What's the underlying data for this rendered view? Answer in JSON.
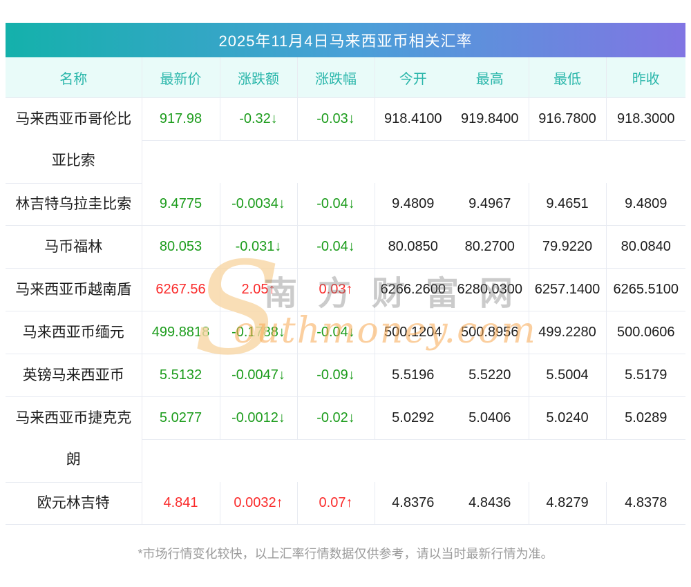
{
  "title": "2025年11月4日马来西亚币相关汇率",
  "columns": [
    "名称",
    "最新价",
    "涨跌额",
    "涨跌幅",
    "今开",
    "最高",
    "最低",
    "昨收"
  ],
  "rows": [
    {
      "name": "马来西亚币哥伦比亚比索",
      "latest": "917.98",
      "change": "-0.32↓",
      "pct": "-0.03↓",
      "open": "918.4100",
      "high": "919.8400",
      "low": "916.7800",
      "prev": "918.3000",
      "trend": "down",
      "tall": true
    },
    {
      "name": "林吉特乌拉圭比索",
      "latest": "9.4775",
      "change": "-0.0034↓",
      "pct": "-0.04↓",
      "open": "9.4809",
      "high": "9.4967",
      "low": "9.4651",
      "prev": "9.4809",
      "trend": "down",
      "tall": false
    },
    {
      "name": "马币福林",
      "latest": "80.053",
      "change": "-0.031↓",
      "pct": "-0.04↓",
      "open": "80.0850",
      "high": "80.2700",
      "low": "79.9220",
      "prev": "80.0840",
      "trend": "down",
      "tall": false
    },
    {
      "name": "马来西亚币越南盾",
      "latest": "6267.56",
      "change": "2.05↑",
      "pct": "0.03↑",
      "open": "6266.2600",
      "high": "6280.0300",
      "low": "6257.1400",
      "prev": "6265.5100",
      "trend": "up",
      "tall": false
    },
    {
      "name": "马来西亚币缅元",
      "latest": "499.8818",
      "change": "-0.1788↓",
      "pct": "-0.04↓",
      "open": "500.1204",
      "high": "500.8956",
      "low": "499.2280",
      "prev": "500.0606",
      "trend": "down",
      "tall": false
    },
    {
      "name": "英镑马来西亚币",
      "latest": "5.5132",
      "change": "-0.0047↓",
      "pct": "-0.09↓",
      "open": "5.5196",
      "high": "5.5220",
      "low": "5.5004",
      "prev": "5.5179",
      "trend": "down",
      "tall": false
    },
    {
      "name": "马来西亚币捷克克朗",
      "latest": "5.0277",
      "change": "-0.0012↓",
      "pct": "-0.02↓",
      "open": "5.0292",
      "high": "5.0406",
      "low": "5.0240",
      "prev": "5.0289",
      "trend": "down",
      "tall": true
    },
    {
      "name": "欧元林吉特",
      "latest": "4.841",
      "change": "0.0032↑",
      "pct": "0.07↑",
      "open": "4.8376",
      "high": "4.8436",
      "low": "4.8279",
      "prev": "4.8378",
      "trend": "up",
      "tall": false
    }
  ],
  "watermark": {
    "initial": "S",
    "chars": "南方财富网",
    "script": "outhmoney.com"
  },
  "footer": "*市场行情变化较快，以上汇率行情数据仅供参考，请以当时最新行情为准。",
  "colors": {
    "up_red": "#fa2b2b",
    "down_green": "#1c9c1c",
    "header_teal": "#29b6aa",
    "header_bg": "#e9fbf9",
    "grid_line": "#e8ebf2",
    "gradient_left": "#14b1ab",
    "gradient_mid": "#4a9fd8",
    "gradient_right": "#8175e3"
  }
}
